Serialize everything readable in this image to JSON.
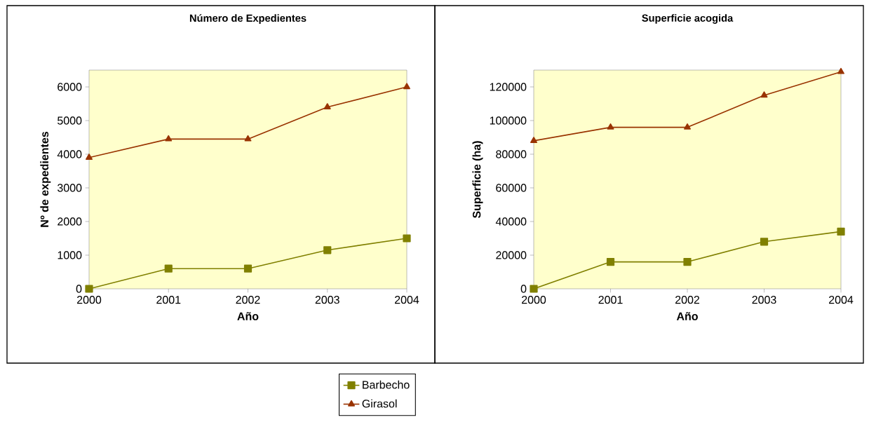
{
  "chart_data": [
    {
      "type": "line",
      "title": "Número de Expedientes",
      "xlabel": "Año",
      "ylabel": "Nº de expedientes",
      "categories": [
        "2000",
        "2001",
        "2002",
        "2003",
        "2004"
      ],
      "ylim": [
        0,
        6500
      ],
      "yticks": [
        0,
        1000,
        2000,
        3000,
        4000,
        5000,
        6000
      ],
      "grid": false,
      "legend": "bottom",
      "series": [
        {
          "name": "Barbecho",
          "color": "#808000",
          "marker": "square",
          "values": [
            0,
            600,
            600,
            1150,
            1500
          ]
        },
        {
          "name": "Girasol",
          "color": "#993300",
          "marker": "triangle",
          "values": [
            3900,
            4450,
            4450,
            5400,
            6000
          ]
        }
      ]
    },
    {
      "type": "line",
      "title": "Superficie acogida",
      "xlabel": "Año",
      "ylabel": "Superficie (ha)",
      "categories": [
        "2000",
        "2001",
        "2002",
        "2003",
        "2004"
      ],
      "ylim": [
        0,
        130000
      ],
      "yticks": [
        0,
        20000,
        40000,
        60000,
        80000,
        100000,
        120000
      ],
      "grid": false,
      "series": [
        {
          "color": "#808000",
          "marker": "square",
          "values": [
            0,
            16000,
            16000,
            28000,
            34000
          ]
        },
        {
          "color": "#993300",
          "marker": "triangle",
          "values": [
            88000,
            96000,
            96000,
            115000,
            129000
          ]
        }
      ]
    }
  ]
}
